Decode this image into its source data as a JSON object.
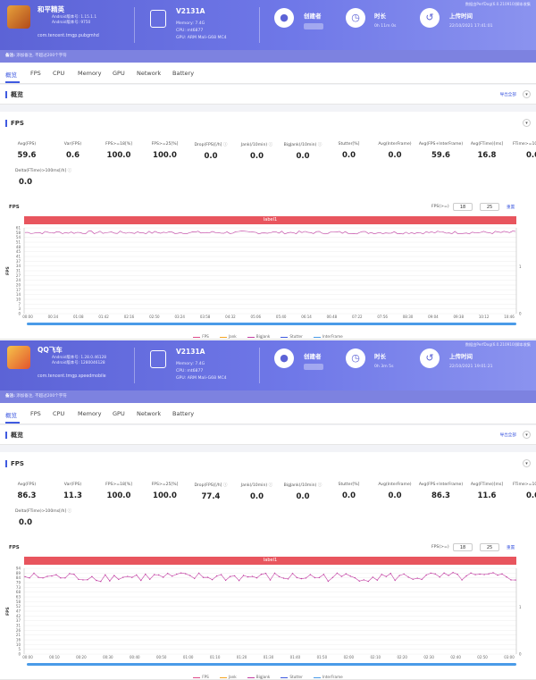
{
  "reports": [
    {
      "app": {
        "name": "和平精英",
        "version": "Android版本号: 1.15.1.1",
        "build": "Android版本号: 9750",
        "package": "com.tencent.tmgp.pubgmhd"
      },
      "device": {
        "model": "V2131A",
        "memory": "Memory: 7.4G",
        "cpu": "CPU: mt6877",
        "gpu": "GPU: ARM Mali-G68 MC4"
      },
      "creator_label": "创建者",
      "duration": {
        "label": "时长",
        "value": "0h 11m 0s"
      },
      "upload": {
        "label": "上传时间",
        "value": "22/10/2021 17:41:01"
      },
      "top_right": "数据由PerfDog(6.0.210910)脚本收集",
      "note": {
        "label": "备注:",
        "text": "添加备注, 不超过200个字符"
      },
      "tabs": [
        "概览",
        "FPS",
        "CPU",
        "Memory",
        "GPU",
        "Network",
        "Battery"
      ],
      "overview": {
        "title": "概览",
        "export": "导出全部"
      },
      "fps_section": {
        "title": "FPS",
        "stats": [
          {
            "label": "Avg(FPS)",
            "value": "59.6"
          },
          {
            "label": "Var(FPS)",
            "value": "0.6"
          },
          {
            "label": "FPS>=18[%]",
            "value": "100.0"
          },
          {
            "label": "FPS>=25[%]",
            "value": "100.0"
          },
          {
            "label": "Drop(FPS)[/h]",
            "value": "0.0"
          },
          {
            "label": "Jank(/10min)",
            "value": "0.0"
          },
          {
            "label": "BigJank(/10min)",
            "value": "0.0"
          },
          {
            "label": "Stutter[%]",
            "value": "0.0"
          },
          {
            "label": "Avg(InterFrame)",
            "value": "0.0"
          },
          {
            "label": "Avg(FPS+InterFrame)",
            "value": "59.6"
          },
          {
            "label": "Avg(FTime)[ms]",
            "value": "16.8"
          },
          {
            "label": "FTime>=100ms[%]",
            "value": "0.0"
          },
          {
            "label": "Delta(FTime)>100ms[/h]",
            "value": "0.0"
          }
        ]
      },
      "chart": {
        "title": "FPS",
        "fps_input_label": "FPS(>=)",
        "input1": "18",
        "input2": "25",
        "reset": "重置",
        "label_bar": "label1",
        "ylabel": "FPS",
        "y_ticks": [
          "61",
          "58",
          "54",
          "51",
          "48",
          "45",
          "41",
          "37",
          "34",
          "31",
          "27",
          "24",
          "20",
          "17",
          "14",
          "10",
          "7",
          "3",
          "0"
        ],
        "right_ticks": [
          "1",
          "0"
        ],
        "x_ticks": [
          "00:00",
          "00:34",
          "01:08",
          "01:42",
          "02:16",
          "02:50",
          "03:24",
          "03:58",
          "04:32",
          "05:06",
          "05:40",
          "06:14",
          "06:48",
          "07:22",
          "07:56",
          "08:30",
          "09:04",
          "09:38",
          "10:12",
          "10:46"
        ],
        "legend": [
          "FPS",
          "Jank",
          "BigJank",
          "Stutter",
          "InterFrame"
        ]
      },
      "chart_data": {
        "type": "line",
        "x_range": [
          "00:00",
          "11:00"
        ],
        "ylim": [
          0,
          63
        ],
        "series": [
          {
            "name": "FPS",
            "mean": 59.6,
            "min": 57,
            "max": 61
          }
        ]
      }
    },
    {
      "app": {
        "name": "QQ飞车",
        "version": "Android版本号: 1.28.0.46128",
        "build": "Android版本号: 1280046128",
        "package": "com.tencent.tmgp.speedmobile"
      },
      "device": {
        "model": "V2131A",
        "memory": "Memory: 7.4G",
        "cpu": "CPU: mt6877",
        "gpu": "GPU: ARM Mali-G68 MC4"
      },
      "creator_label": "创建者",
      "duration": {
        "label": "时长",
        "value": "0h 3m 5s"
      },
      "upload": {
        "label": "上传时间",
        "value": "22/10/2021 19:01:21"
      },
      "top_right": "数据由PerfDog(6.0.210910)脚本收集",
      "note": {
        "label": "备注:",
        "text": "添加备注, 不超过200个字符"
      },
      "tabs": [
        "概览",
        "FPS",
        "CPU",
        "Memory",
        "GPU",
        "Network",
        "Battery"
      ],
      "overview": {
        "title": "概览",
        "export": "导出全部"
      },
      "fps_section": {
        "title": "FPS",
        "stats": [
          {
            "label": "Avg(FPS)",
            "value": "86.3"
          },
          {
            "label": "Var(FPS)",
            "value": "11.3"
          },
          {
            "label": "FPS>=18[%]",
            "value": "100.0"
          },
          {
            "label": "FPS>=25[%]",
            "value": "100.0"
          },
          {
            "label": "Drop(FPS)[/h]",
            "value": "77.4"
          },
          {
            "label": "Jank(/10min)",
            "value": "0.0"
          },
          {
            "label": "BigJank(/10min)",
            "value": "0.0"
          },
          {
            "label": "Stutter[%]",
            "value": "0.0"
          },
          {
            "label": "Avg(InterFrame)",
            "value": "0.0"
          },
          {
            "label": "Avg(FPS+InterFrame)",
            "value": "86.3"
          },
          {
            "label": "Avg(FTime)[ms]",
            "value": "11.6"
          },
          {
            "label": "FTime>=100ms[%]",
            "value": "0.0"
          },
          {
            "label": "Delta(FTime)>100ms[/h]",
            "value": "0.0"
          }
        ]
      },
      "chart": {
        "title": "FPS",
        "fps_input_label": "FPS(>=)",
        "input1": "18",
        "input2": "25",
        "reset": "重置",
        "label_bar": "label1",
        "ylabel": "FPS",
        "y_ticks": [
          "94",
          "89",
          "84",
          "79",
          "73",
          "68",
          "63",
          "58",
          "52",
          "47",
          "42",
          "37",
          "31",
          "26",
          "21",
          "16",
          "10",
          "5",
          "0"
        ],
        "right_ticks": [
          "1",
          "0"
        ],
        "x_ticks": [
          "00:00",
          "00:10",
          "00:20",
          "00:30",
          "00:40",
          "00:50",
          "01:00",
          "01:10",
          "01:20",
          "01:30",
          "01:40",
          "01:50",
          "02:00",
          "02:10",
          "02:20",
          "02:30",
          "02:40",
          "02:50",
          "03:00"
        ],
        "legend": [
          "FPS",
          "Jank",
          "BigJank",
          "Stutter",
          "InterFrame"
        ]
      },
      "chart_data": {
        "type": "line",
        "x_range": [
          "00:00",
          "03:05"
        ],
        "ylim": [
          0,
          96
        ],
        "series": [
          {
            "name": "FPS",
            "mean": 86.3,
            "min": 80,
            "max": 92
          }
        ]
      }
    }
  ],
  "colors": {
    "accent": "#3f5ae0",
    "header": "#5c63d6",
    "label_bar": "#e8555e",
    "fps_line": "#c23fa3",
    "scrollbar": "#4a9be8"
  },
  "icons": [
    "phone-icon",
    "user-icon",
    "clock-icon",
    "history-icon",
    "chevron-down-icon",
    "question-icon"
  ]
}
